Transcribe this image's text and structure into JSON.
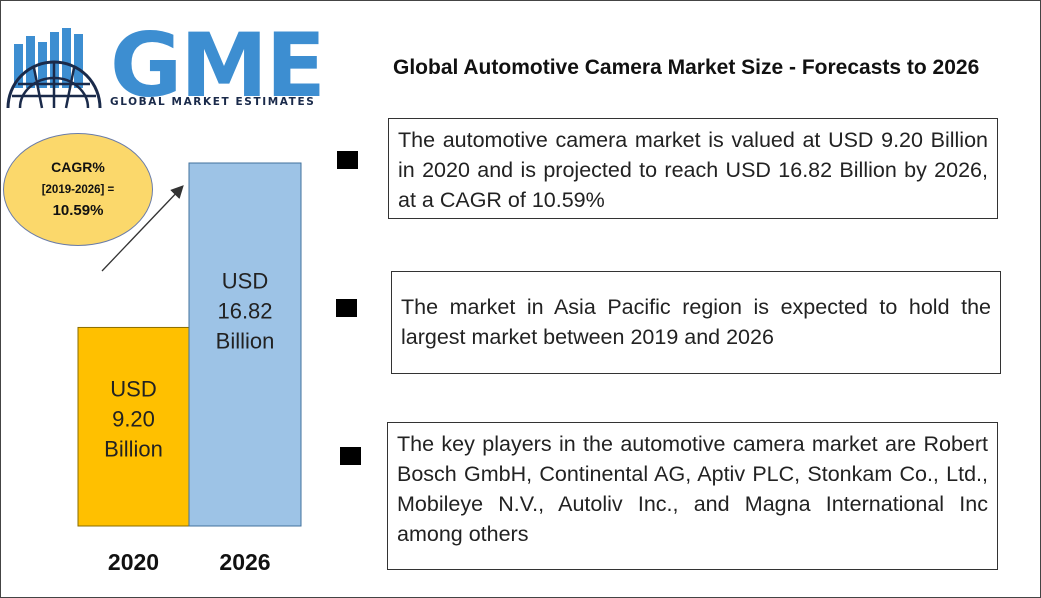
{
  "logo": {
    "text": "GME",
    "subtitle": "GLOBAL MARKET ESTIMATES"
  },
  "title": "Global Automotive Camera  Market Size - Forecasts to 2026",
  "facts": [
    "The automotive camera  market is valued at USD 9.20 Billion in 2020 and is projected to reach USD 16.82 Billion by 2026, at a CAGR of 10.59%",
    "The market in Asia Pacific region is expected to hold the largest market between 2019 and 2026",
    "The key players in the automotive camera  market are Robert Bosch GmbH, Continental AG, Aptiv PLC, Stonkam Co., Ltd., Mobileye N.V., Autoliv Inc., and Magna International Inc among others"
  ],
  "cagr": {
    "line1": "CAGR%",
    "line2": "[2019-2026] =",
    "line3": "10.59%"
  },
  "colors": {
    "bar_2020": "#ffc000",
    "bar_2026": "#9dc3e6",
    "logo_blue": "#3d8ed1",
    "cagr_fill": "#fbd86b"
  },
  "chart_data": {
    "type": "bar",
    "categories": [
      "2020",
      "2026"
    ],
    "values": [
      9.2,
      16.82
    ],
    "bar_labels": [
      [
        "USD",
        "9.20",
        "Billion"
      ],
      [
        "USD",
        "16.82",
        "Billion"
      ]
    ],
    "unit": "USD Billion",
    "ylim": [
      0,
      20.9
    ],
    "grid": false
  }
}
